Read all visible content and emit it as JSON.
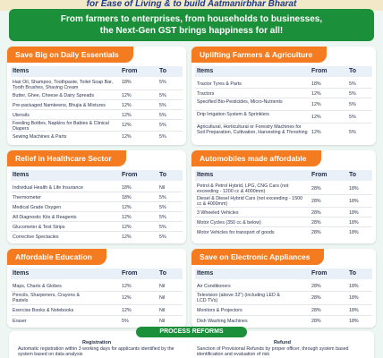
{
  "top_heading": "for Ease of Living & to build Aatmanirbhar Bharat",
  "banner": {
    "line1": "From farmers to enterprises, from households to businesses,",
    "line2": "the Next-Gen GST brings happiness for all!"
  },
  "columns": {
    "item": "Items",
    "from": "From",
    "to": "To"
  },
  "cards": [
    {
      "title": "Save Big on Daily Essentials",
      "rows": [
        {
          "item": "Hair Oil, Shampoo, Toothpaste, Toilet Soap Bar, Tooth Brushes, Shaving Cream",
          "from": "18%",
          "to": "5%"
        },
        {
          "item": "Butter, Ghee, Cheese & Dairy Spreads",
          "from": "12%",
          "to": "5%"
        },
        {
          "item": "Pre-packaged Namkeens, Bhujia & Mixtures",
          "from": "12%",
          "to": "5%"
        },
        {
          "item": "Utensils",
          "from": "12%",
          "to": "5%"
        },
        {
          "item": "Feeding Bottles, Napkins for Babies & Clinical Diapers",
          "from": "12%",
          "to": "5%"
        },
        {
          "item": "Sewing Machines & Parts",
          "from": "12%",
          "to": "5%"
        }
      ]
    },
    {
      "title": "Uplifting Farmers & Agriculture",
      "rows": [
        {
          "item": "Tractor Tyres & Parts",
          "from": "18%",
          "to": "5%"
        },
        {
          "item": "Tractors",
          "from": "12%",
          "to": "5%"
        },
        {
          "item": "Specified Bio-Pesticides, Micro-Nutrients",
          "from": "12%",
          "to": "5%"
        },
        {
          "item": "Drip Irrigation System & Sprinklers",
          "from": "12%",
          "to": "5%"
        },
        {
          "item": "Agricultural, Horticultural or Forestry Machines for Soil Preparation, Cultivation, Harvesting & Threshing",
          "from": "12%",
          "to": "5%"
        }
      ]
    },
    {
      "title": "Relief in Healthcare Sector",
      "rows": [
        {
          "item": "Individual Health & Life Insurance",
          "from": "18%",
          "to": "Nil"
        },
        {
          "item": "Thermometer",
          "from": "18%",
          "to": "5%"
        },
        {
          "item": "Medical Grade Oxygen",
          "from": "12%",
          "to": "5%"
        },
        {
          "item": "All Diagnostic Kits & Reagents",
          "from": "12%",
          "to": "5%"
        },
        {
          "item": "Glucometer & Test Strips",
          "from": "12%",
          "to": "5%"
        },
        {
          "item": "Corrective Spectacles",
          "from": "12%",
          "to": "5%"
        }
      ]
    },
    {
      "title": "Automobiles made affordable",
      "rows": [
        {
          "item": "Petrol & Petrol Hybrid, LPG, CNG Cars (not exceeding - 1200 cc & 4000mm)",
          "from": "28%",
          "to": "18%"
        },
        {
          "item": "Diesel & Diesel Hybrid Cars (not exceeding - 1500 cc & 4000mm)",
          "from": "28%",
          "to": "18%"
        },
        {
          "item": "3 Wheeled Vehicles",
          "from": "28%",
          "to": "18%"
        },
        {
          "item": "Motor Cycles (350 cc & below)",
          "from": "28%",
          "to": "18%"
        },
        {
          "item": "Motor Vehicles for transport of goods",
          "from": "28%",
          "to": "18%"
        }
      ]
    },
    {
      "title": "Affordable Education",
      "rows": [
        {
          "item": "Maps, Charts & Globes",
          "from": "12%",
          "to": "Nil"
        },
        {
          "item": "Pencils, Sharpeners, Crayons & Pastels",
          "from": "12%",
          "to": "Nil"
        },
        {
          "item": "Exercise Books & Notebooks",
          "from": "12%",
          "to": "Nil"
        },
        {
          "item": "Eraser",
          "from": "5%",
          "to": "Nil"
        }
      ]
    },
    {
      "title": "Save on Electronic Appliances",
      "rows": [
        {
          "item": "Air Conditioners",
          "from": "28%",
          "to": "18%"
        },
        {
          "item": "Television (above 32\") (including LED & LCD TVs)",
          "from": "28%",
          "to": "18%"
        },
        {
          "item": "Monitors & Projectors",
          "from": "28%",
          "to": "18%"
        },
        {
          "item": "Dish Washing Machines",
          "from": "28%",
          "to": "18%"
        }
      ]
    }
  ],
  "process": {
    "title": "PROCESS REFORMS",
    "registration_heading": "Registration",
    "registration_text": "Automatic registration within 3 working days for applicants identified by the system based on data analysis",
    "refund_heading": "Refund",
    "refund_text": "Sanction of Provisional Refunds by proper officer, through system based identification and evaluation of risk"
  }
}
